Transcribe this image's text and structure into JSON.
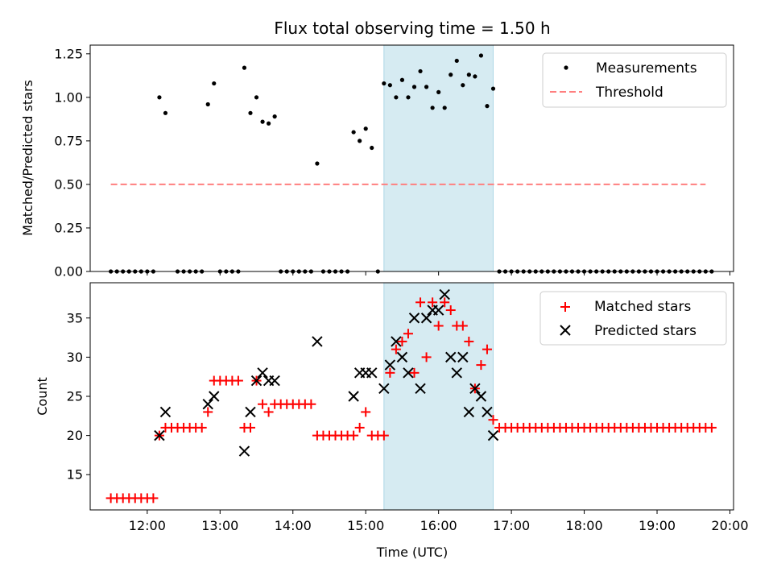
{
  "chart_data": [
    {
      "type": "scatter",
      "title": "Flux total observing time = 1.50 h",
      "ylabel": "Matched/Predicted stars",
      "xlabel": "",
      "xlim": [
        "11:13",
        "20:03"
      ],
      "ylim": [
        0,
        1.3
      ],
      "yticks": [
        0.0,
        0.25,
        0.5,
        0.75,
        1.0,
        1.25
      ],
      "ytick_labels": [
        "0.00",
        "0.25",
        "0.50",
        "0.75",
        "1.00",
        "1.25"
      ],
      "xticks": [
        "12:00",
        "13:00",
        "14:00",
        "15:00",
        "16:00",
        "17:00",
        "18:00",
        "19:00",
        "20:00"
      ],
      "shaded_span": {
        "from": "15:15",
        "to": "16:45",
        "color": "#add8e6"
      },
      "legend_position": "upper right",
      "series": [
        {
          "name": "Measurements",
          "marker": "dot",
          "color": "#000000",
          "points": [
            [
              "11:30",
              0
            ],
            [
              "11:35",
              0
            ],
            [
              "11:40",
              0
            ],
            [
              "11:45",
              0
            ],
            [
              "11:50",
              0
            ],
            [
              "11:55",
              0
            ],
            [
              "12:00",
              0
            ],
            [
              "12:05",
              0
            ],
            [
              "12:10",
              1.0
            ],
            [
              "12:15",
              0.91
            ],
            [
              "12:25",
              0
            ],
            [
              "12:30",
              0
            ],
            [
              "12:35",
              0
            ],
            [
              "12:40",
              0
            ],
            [
              "12:45",
              0
            ],
            [
              "12:50",
              0.96
            ],
            [
              "12:55",
              1.08
            ],
            [
              "13:00",
              0
            ],
            [
              "13:05",
              0
            ],
            [
              "13:10",
              0
            ],
            [
              "13:15",
              0
            ],
            [
              "13:20",
              1.17
            ],
            [
              "13:25",
              0.91
            ],
            [
              "13:30",
              1.0
            ],
            [
              "13:35",
              0.86
            ],
            [
              "13:40",
              0.85
            ],
            [
              "13:45",
              0.89
            ],
            [
              "13:50",
              0
            ],
            [
              "13:55",
              0
            ],
            [
              "14:00",
              0
            ],
            [
              "14:05",
              0
            ],
            [
              "14:10",
              0
            ],
            [
              "14:15",
              0
            ],
            [
              "14:20",
              0.62
            ],
            [
              "14:25",
              0
            ],
            [
              "14:30",
              0
            ],
            [
              "14:35",
              0
            ],
            [
              "14:40",
              0
            ],
            [
              "14:45",
              0
            ],
            [
              "14:50",
              0.8
            ],
            [
              "14:55",
              0.75
            ],
            [
              "15:00",
              0.82
            ],
            [
              "15:05",
              0.71
            ],
            [
              "15:10",
              0
            ],
            [
              "15:15",
              1.08
            ],
            [
              "15:20",
              1.07
            ],
            [
              "15:25",
              1.0
            ],
            [
              "15:30",
              1.1
            ],
            [
              "15:35",
              1.0
            ],
            [
              "15:40",
              1.06
            ],
            [
              "15:45",
              1.15
            ],
            [
              "15:50",
              1.06
            ],
            [
              "15:55",
              0.94
            ],
            [
              "16:00",
              1.03
            ],
            [
              "16:05",
              0.94
            ],
            [
              "16:10",
              1.13
            ],
            [
              "16:15",
              1.21
            ],
            [
              "16:20",
              1.07
            ],
            [
              "16:25",
              1.13
            ],
            [
              "16:30",
              1.12
            ],
            [
              "16:35",
              1.24
            ],
            [
              "16:40",
              0.95
            ],
            [
              "16:45",
              1.05
            ],
            [
              "16:50",
              0
            ],
            [
              "16:55",
              0
            ],
            [
              "17:00",
              0
            ],
            [
              "17:05",
              0
            ],
            [
              "17:10",
              0
            ],
            [
              "17:15",
              0
            ],
            [
              "17:20",
              0
            ],
            [
              "17:25",
              0
            ],
            [
              "17:30",
              0
            ],
            [
              "17:35",
              0
            ],
            [
              "17:40",
              0
            ],
            [
              "17:45",
              0
            ],
            [
              "17:50",
              0
            ],
            [
              "17:55",
              0
            ],
            [
              "18:00",
              0
            ],
            [
              "18:05",
              0
            ],
            [
              "18:10",
              0
            ],
            [
              "18:15",
              0
            ],
            [
              "18:20",
              0
            ],
            [
              "18:25",
              0
            ],
            [
              "18:30",
              0
            ],
            [
              "18:35",
              0
            ],
            [
              "18:40",
              0
            ],
            [
              "18:45",
              0
            ],
            [
              "18:50",
              0
            ],
            [
              "18:55",
              0
            ],
            [
              "19:00",
              0
            ],
            [
              "19:05",
              0
            ],
            [
              "19:10",
              0
            ],
            [
              "19:15",
              0
            ],
            [
              "19:20",
              0
            ],
            [
              "19:25",
              0
            ],
            [
              "19:30",
              0
            ],
            [
              "19:35",
              0
            ],
            [
              "19:40",
              0
            ],
            [
              "19:45",
              0
            ]
          ]
        },
        {
          "name": "Threshold",
          "marker": "dashed-line",
          "color": "#ff7f7f",
          "points": [
            [
              "11:30",
              0.5
            ],
            [
              "19:40",
              0.5
            ]
          ]
        }
      ]
    },
    {
      "type": "scatter",
      "title": "",
      "ylabel": "Count",
      "xlabel": "Time (UTC)",
      "xlim": [
        "11:13",
        "20:03"
      ],
      "ylim": [
        10.5,
        39.5
      ],
      "yticks": [
        15,
        20,
        25,
        30,
        35
      ],
      "ytick_labels": [
        "15",
        "20",
        "25",
        "30",
        "35"
      ],
      "xticks": [
        "12:00",
        "13:00",
        "14:00",
        "15:00",
        "16:00",
        "17:00",
        "18:00",
        "19:00",
        "20:00"
      ],
      "xtick_labels": [
        "12:00",
        "13:00",
        "14:00",
        "15:00",
        "16:00",
        "17:00",
        "18:00",
        "19:00",
        "20:00"
      ],
      "shaded_span": {
        "from": "15:15",
        "to": "16:45",
        "color": "#add8e6"
      },
      "legend_position": "upper right",
      "series": [
        {
          "name": "Matched stars",
          "marker": "plus",
          "color": "#ff0000",
          "points": [
            [
              "11:30",
              12
            ],
            [
              "11:35",
              12
            ],
            [
              "11:40",
              12
            ],
            [
              "11:45",
              12
            ],
            [
              "11:50",
              12
            ],
            [
              "11:55",
              12
            ],
            [
              "12:00",
              12
            ],
            [
              "12:05",
              12
            ],
            [
              "12:10",
              20
            ],
            [
              "12:15",
              21
            ],
            [
              "12:20",
              21
            ],
            [
              "12:25",
              21
            ],
            [
              "12:30",
              21
            ],
            [
              "12:35",
              21
            ],
            [
              "12:40",
              21
            ],
            [
              "12:45",
              21
            ],
            [
              "12:50",
              23
            ],
            [
              "12:55",
              27
            ],
            [
              "13:00",
              27
            ],
            [
              "13:05",
              27
            ],
            [
              "13:10",
              27
            ],
            [
              "13:15",
              27
            ],
            [
              "13:20",
              21
            ],
            [
              "13:25",
              21
            ],
            [
              "13:30",
              27
            ],
            [
              "13:35",
              24
            ],
            [
              "13:40",
              23
            ],
            [
              "13:45",
              24
            ],
            [
              "13:50",
              24
            ],
            [
              "13:55",
              24
            ],
            [
              "14:00",
              24
            ],
            [
              "14:05",
              24
            ],
            [
              "14:10",
              24
            ],
            [
              "14:15",
              24
            ],
            [
              "14:20",
              20
            ],
            [
              "14:25",
              20
            ],
            [
              "14:30",
              20
            ],
            [
              "14:35",
              20
            ],
            [
              "14:40",
              20
            ],
            [
              "14:45",
              20
            ],
            [
              "14:50",
              20
            ],
            [
              "14:55",
              21
            ],
            [
              "15:00",
              23
            ],
            [
              "15:05",
              20
            ],
            [
              "15:10",
              20
            ],
            [
              "15:15",
              20
            ],
            [
              "15:20",
              28
            ],
            [
              "15:25",
              31
            ],
            [
              "15:30",
              32
            ],
            [
              "15:35",
              33
            ],
            [
              "15:40",
              28
            ],
            [
              "15:45",
              37
            ],
            [
              "15:50",
              30
            ],
            [
              "15:55",
              37
            ],
            [
              "16:00",
              34
            ],
            [
              "16:05",
              37
            ],
            [
              "16:10",
              36
            ],
            [
              "16:15",
              34
            ],
            [
              "16:20",
              34
            ],
            [
              "16:25",
              32
            ],
            [
              "16:30",
              26
            ],
            [
              "16:35",
              29
            ],
            [
              "16:40",
              31
            ],
            [
              "16:45",
              22
            ],
            [
              "16:50",
              21
            ],
            [
              "16:55",
              21
            ],
            [
              "17:00",
              21
            ],
            [
              "17:05",
              21
            ],
            [
              "17:10",
              21
            ],
            [
              "17:15",
              21
            ],
            [
              "17:20",
              21
            ],
            [
              "17:25",
              21
            ],
            [
              "17:30",
              21
            ],
            [
              "17:35",
              21
            ],
            [
              "17:40",
              21
            ],
            [
              "17:45",
              21
            ],
            [
              "17:50",
              21
            ],
            [
              "17:55",
              21
            ],
            [
              "18:00",
              21
            ],
            [
              "18:05",
              21
            ],
            [
              "18:10",
              21
            ],
            [
              "18:15",
              21
            ],
            [
              "18:20",
              21
            ],
            [
              "18:25",
              21
            ],
            [
              "18:30",
              21
            ],
            [
              "18:35",
              21
            ],
            [
              "18:40",
              21
            ],
            [
              "18:45",
              21
            ],
            [
              "18:50",
              21
            ],
            [
              "18:55",
              21
            ],
            [
              "19:00",
              21
            ],
            [
              "19:05",
              21
            ],
            [
              "19:10",
              21
            ],
            [
              "19:15",
              21
            ],
            [
              "19:20",
              21
            ],
            [
              "19:25",
              21
            ],
            [
              "19:30",
              21
            ],
            [
              "19:35",
              21
            ],
            [
              "19:40",
              21
            ],
            [
              "19:45",
              21
            ]
          ]
        },
        {
          "name": "Predicted stars",
          "marker": "x",
          "color": "#000000",
          "points": [
            [
              "12:10",
              20
            ],
            [
              "12:15",
              23
            ],
            [
              "12:50",
              24
            ],
            [
              "12:55",
              25
            ],
            [
              "13:20",
              18
            ],
            [
              "13:25",
              23
            ],
            [
              "13:30",
              27
            ],
            [
              "13:35",
              28
            ],
            [
              "13:40",
              27
            ],
            [
              "13:45",
              27
            ],
            [
              "14:20",
              32
            ],
            [
              "14:50",
              25
            ],
            [
              "14:55",
              28
            ],
            [
              "15:00",
              28
            ],
            [
              "15:05",
              28
            ],
            [
              "15:15",
              26
            ],
            [
              "15:20",
              29
            ],
            [
              "15:25",
              32
            ],
            [
              "15:30",
              30
            ],
            [
              "15:35",
              28
            ],
            [
              "15:40",
              35
            ],
            [
              "15:45",
              26
            ],
            [
              "15:50",
              35
            ],
            [
              "15:55",
              36
            ],
            [
              "16:00",
              36
            ],
            [
              "16:05",
              38
            ],
            [
              "16:10",
              30
            ],
            [
              "16:15",
              28
            ],
            [
              "16:20",
              30
            ],
            [
              "16:25",
              23
            ],
            [
              "16:30",
              26
            ],
            [
              "16:35",
              25
            ],
            [
              "16:40",
              23
            ],
            [
              "16:45",
              20
            ]
          ]
        }
      ]
    }
  ]
}
